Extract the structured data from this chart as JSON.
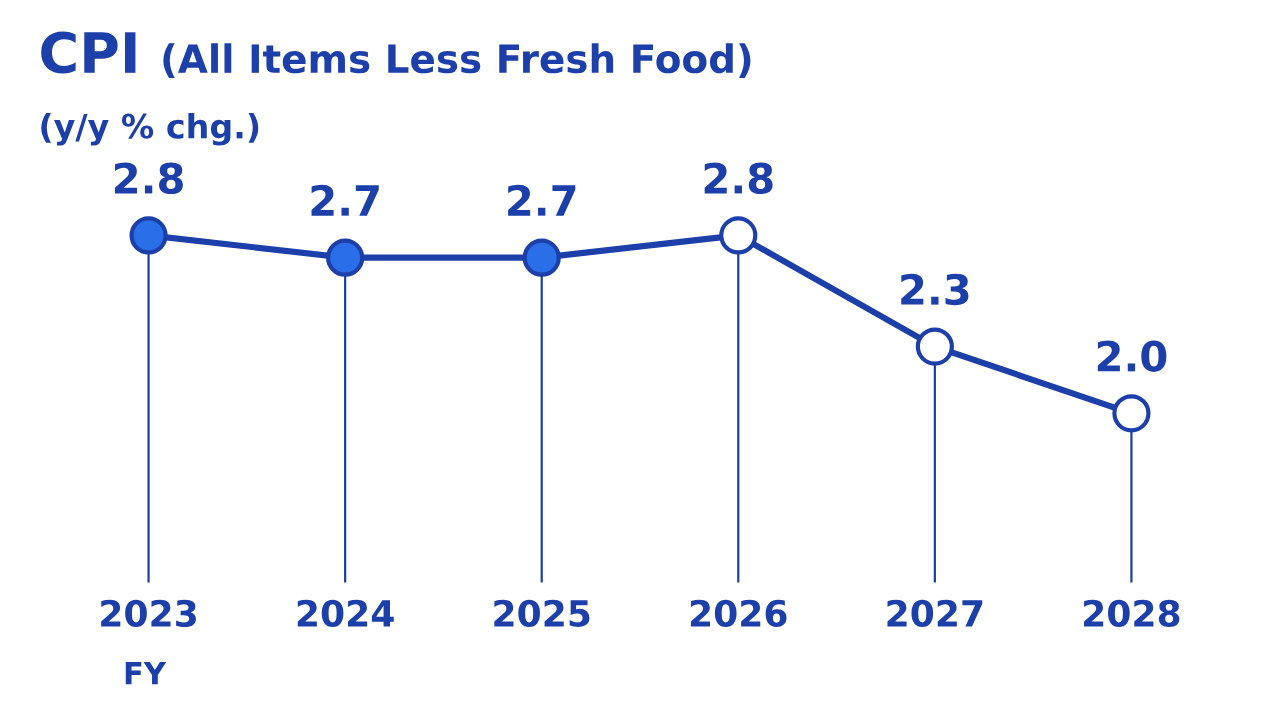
{
  "chart_data": {
    "type": "line",
    "title": "CPI",
    "subtitle": "(All Items Less Fresh Food)",
    "ylabel": "(y/y % chg.)",
    "categories": [
      "2023",
      "2024",
      "2025",
      "2026",
      "2027",
      "2028"
    ],
    "series": [
      {
        "color": "#1c3faa",
        "values": [
          2.8,
          2.7,
          2.7,
          2.8,
          2.3,
          2.0
        ],
        "value_labels": [
          "2.8",
          "2.7",
          "2.7",
          "2.8",
          "2.3",
          "2.0"
        ],
        "colors": [
          "#2a6ee8",
          "#2a6ee8",
          "#2a6ee8",
          "#ffffff",
          "#ffffff",
          "#ffffff"
        ]
      }
    ],
    "tick_labels": "x",
    "grid": "x",
    "marker": "circle",
    "line_style": "solid",
    "annotations": [
      "FY"
    ]
  }
}
